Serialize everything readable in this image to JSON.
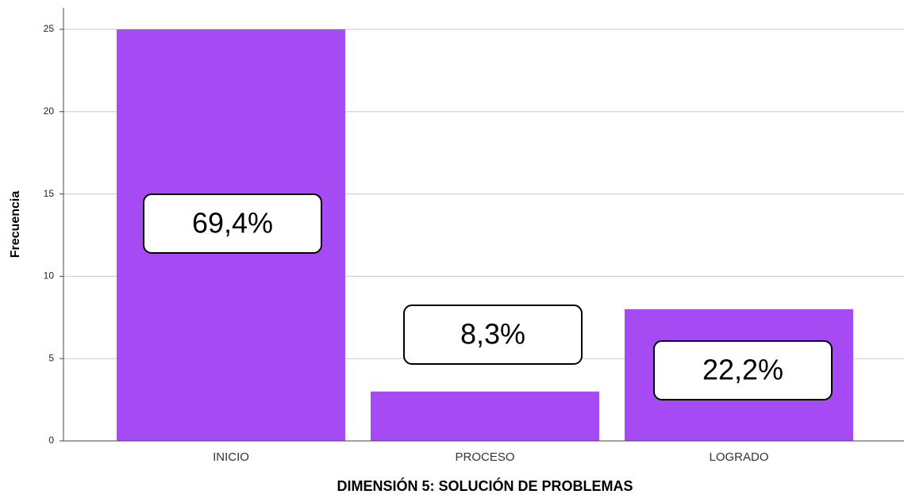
{
  "chart_data": {
    "type": "bar",
    "x_label": "DIMENSIÓN 5: SOLUCIÓN DE PROBLEMAS",
    "y_label": "Frecuencia",
    "categories": [
      "INICIO",
      "PROCESO",
      "LOGRADO"
    ],
    "values": [
      25,
      3,
      8
    ],
    "color": "#a64bf4",
    "annotations": [
      "69,4%",
      "8,3%",
      "22,2%"
    ],
    "ylim": [
      0,
      26.3
    ],
    "yticks": [
      0,
      5,
      10,
      15,
      20,
      25
    ],
    "grid": true
  }
}
